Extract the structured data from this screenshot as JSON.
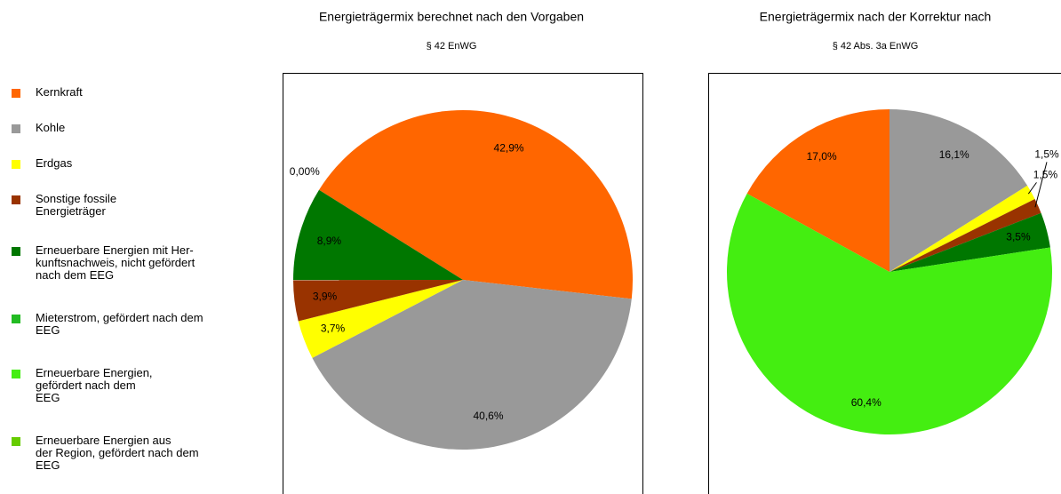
{
  "legend": {
    "categories": [
      "Kernkraft",
      "Kohle",
      "Erdgas",
      "Sonstige fossile\nEnergieträger",
      "Erneuerbare Energien mit Her-\nkunftsnachweis, nicht gefördert\nnach dem EEG",
      "Mieterstrom, gefördert nach dem\nEEG",
      "Erneuerbare Energien,\ngefördert nach dem\nEEG",
      "Erneuerbare Energien aus\nder Region, gefördert nach dem\nEEG"
    ],
    "colors": [
      "#ff6600",
      "#999999",
      "#ffff00",
      "#993300",
      "#007700",
      "#22bb22",
      "#44ee11",
      "#66cc00"
    ]
  },
  "chart_data": [
    {
      "type": "pie",
      "title": "Energieträgermix berechnet nach den Vorgaben",
      "subtitle": "§ 42 EnWG",
      "values": [
        42.9,
        40.6,
        3.7,
        3.9,
        8.9,
        0,
        null,
        null
      ],
      "value_labels": [
        "42,9%",
        "40,6%",
        "3,7%",
        "3,9%",
        "8,9%",
        "0,00%",
        null,
        null
      ]
    },
    {
      "type": "pie",
      "title": "Energieträgermix nach der Korrektur nach",
      "subtitle": "§ 42 Abs. 3a EnWG",
      "values": [
        17.0,
        16.1,
        1.5,
        1.5,
        3.5,
        null,
        60.4,
        null
      ],
      "value_labels": [
        "17,0%",
        "16,1%",
        "1,5%",
        "1,5%",
        "3,5%",
        null,
        "60,4%",
        null
      ]
    }
  ]
}
